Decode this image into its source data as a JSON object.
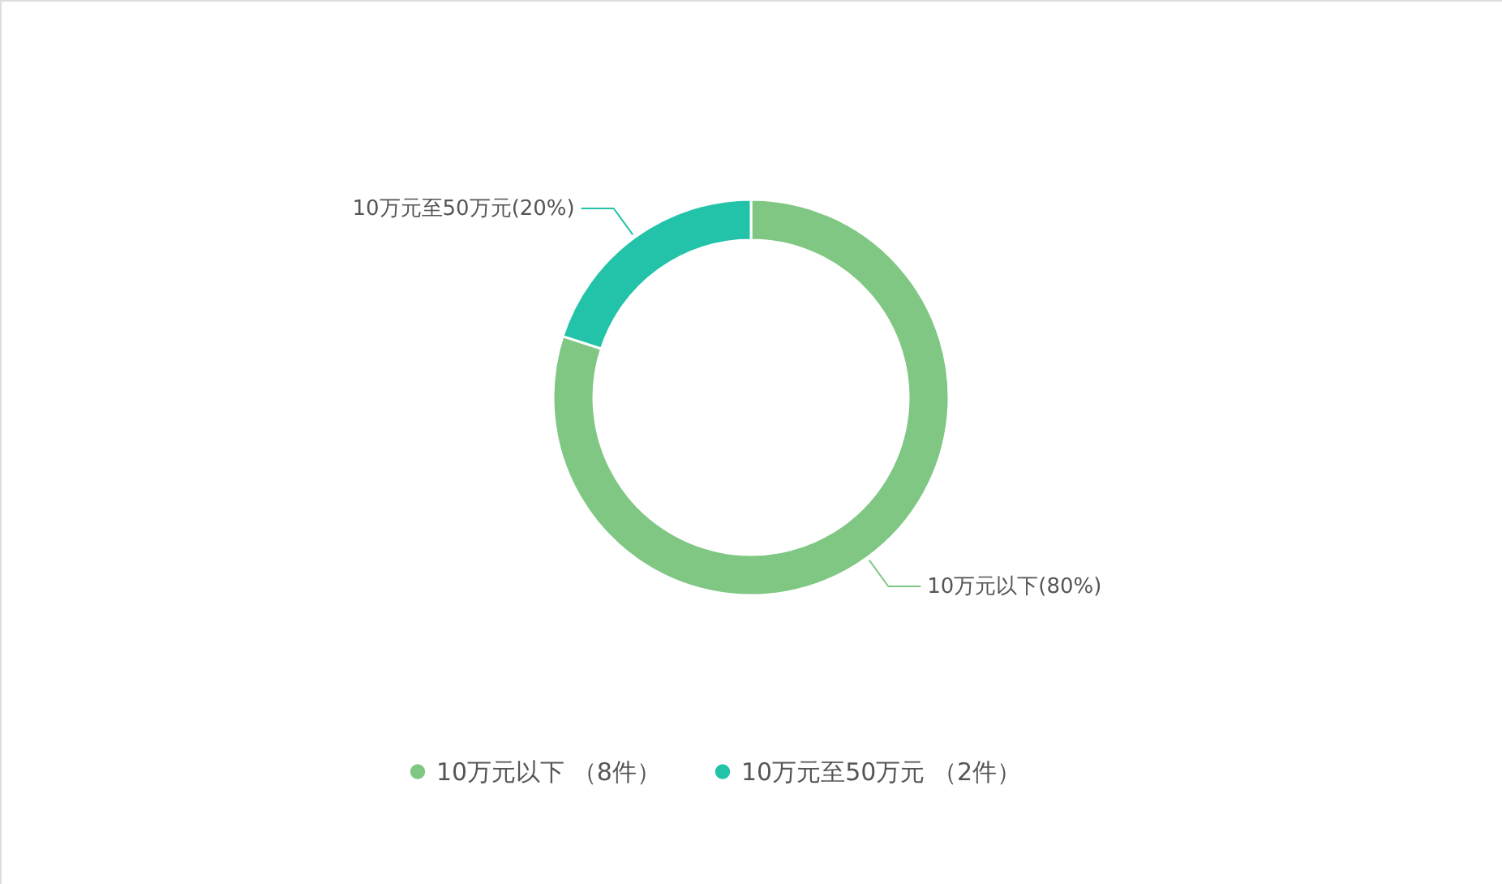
{
  "chart_data": {
    "type": "donut",
    "categories": [
      "10万元以下 （8件）",
      "10万元至50万元 （2件）"
    ],
    "values": [
      80,
      20
    ],
    "colors": [
      "#7fc782",
      "#22c3a8"
    ],
    "value_labels": [
      "10万元以下(80%)",
      "10万元至50万元(20%)"
    ],
    "legend": "bottom"
  }
}
